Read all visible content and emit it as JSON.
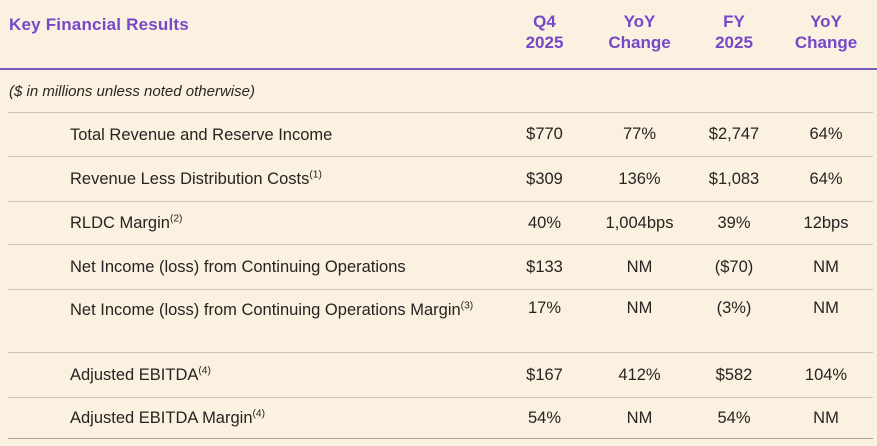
{
  "title": "Key Financial Results",
  "note": "($ in millions unless noted otherwise)",
  "header": {
    "columns": [
      {
        "line1": "Q4",
        "line2": "2025"
      },
      {
        "line1": "YoY",
        "line2": "Change"
      },
      {
        "line1": "FY",
        "line2": "2025"
      },
      {
        "line1": "YoY",
        "line2": "Change"
      }
    ]
  },
  "rows": [
    {
      "label": "Total Revenue and Reserve Income",
      "sup": "",
      "values": [
        "$770",
        "77%",
        "$2,747",
        "64%"
      ]
    },
    {
      "label": "Revenue Less Distribution Costs",
      "sup": "(1)",
      "values": [
        "$309",
        "136%",
        "$1,083",
        "64%"
      ]
    },
    {
      "label": "RLDC Margin",
      "sup": "(2)",
      "values": [
        "40%",
        "1,004bps",
        "39%",
        "12bps"
      ]
    },
    {
      "label": "Net Income (loss) from Continuing Operations",
      "sup": "",
      "values": [
        "$133",
        "NM",
        "($70)",
        "NM"
      ]
    },
    {
      "label": "Net Income (loss) from Continuing Operations Margin",
      "sup": "(3)",
      "values": [
        "17%",
        "NM",
        "(3%)",
        "NM"
      ]
    },
    {
      "label": "Adjusted EBITDA",
      "sup": "(4)",
      "values": [
        "$167",
        "412%",
        "$582",
        "104%"
      ]
    },
    {
      "label": "Adjusted EBITDA Margin",
      "sup": "(4)",
      "values": [
        "54%",
        "NM",
        "54%",
        "NM"
      ]
    }
  ],
  "colors": {
    "accent_purple_text": "#7448c8",
    "accent_purple_rule": "#7c59c0",
    "background_cream": "#fbf1e1",
    "row_separator": "#c9c5bc",
    "bottom_border": "#a49f97",
    "body_text": "#262321"
  }
}
